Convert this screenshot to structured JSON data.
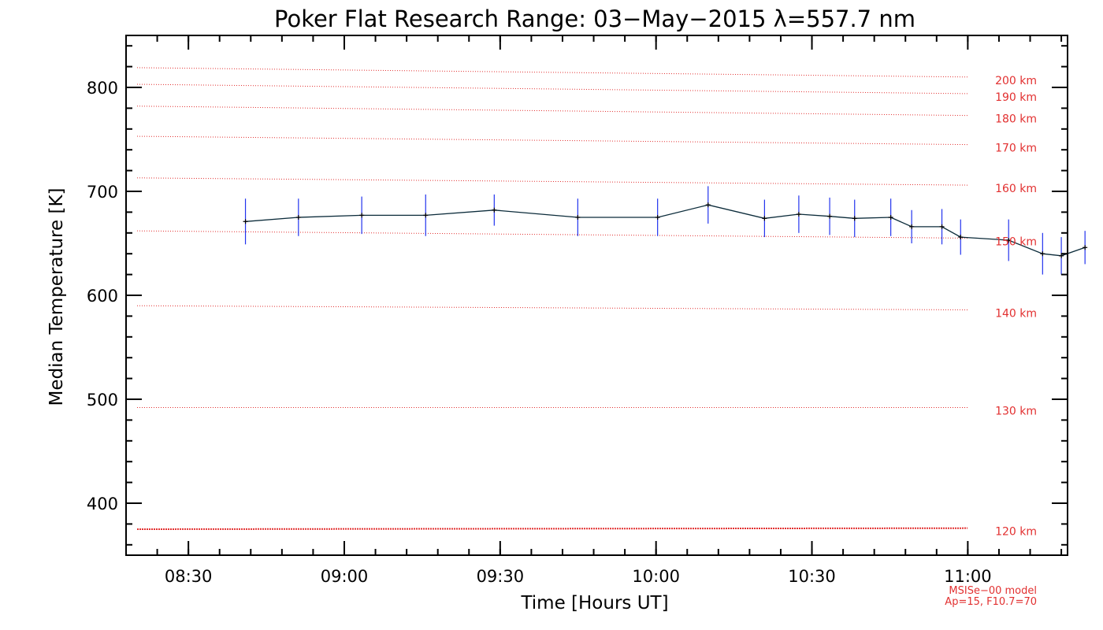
{
  "chart_data": {
    "type": "line",
    "title": "Poker Flat Research Range: 03−May−2015 λ=557.7 nm",
    "xlabel": "Time [Hours UT]",
    "ylabel": "Median Temperature [K]",
    "xlim": [
      8.3,
      11.32
    ],
    "ylim": [
      350,
      850
    ],
    "x_ticks": [
      {
        "value": 8.5,
        "label": "08:30"
      },
      {
        "value": 9.0,
        "label": "09:00"
      },
      {
        "value": 9.5,
        "label": "09:30"
      },
      {
        "value": 10.0,
        "label": "10:00"
      },
      {
        "value": 10.5,
        "label": "10:30"
      },
      {
        "value": 11.0,
        "label": "11:00"
      }
    ],
    "x_minor_step": 0.1,
    "y_ticks": [
      {
        "value": 400,
        "label": "400"
      },
      {
        "value": 500,
        "label": "500"
      },
      {
        "value": 600,
        "label": "600"
      },
      {
        "value": 700,
        "label": "700"
      },
      {
        "value": 800,
        "label": "800"
      }
    ],
    "y_minor_step": 20,
    "series": [
      {
        "color": "#0b2b3a",
        "error_color": "#2233ee",
        "points": [
          {
            "x": 8.683,
            "y": 671,
            "err": 22
          },
          {
            "x": 8.853,
            "y": 675,
            "err": 18
          },
          {
            "x": 9.056,
            "y": 677,
            "err": 18
          },
          {
            "x": 9.261,
            "y": 677,
            "err": 20
          },
          {
            "x": 9.481,
            "y": 682,
            "err": 15
          },
          {
            "x": 9.749,
            "y": 675,
            "err": 18
          },
          {
            "x": 10.005,
            "y": 675,
            "err": 18
          },
          {
            "x": 10.167,
            "y": 687,
            "err": 18
          },
          {
            "x": 10.348,
            "y": 674,
            "err": 18
          },
          {
            "x": 10.458,
            "y": 678,
            "err": 18
          },
          {
            "x": 10.557,
            "y": 676,
            "err": 18
          },
          {
            "x": 10.637,
            "y": 674,
            "err": 18
          },
          {
            "x": 10.753,
            "y": 675,
            "err": 18
          },
          {
            "x": 10.82,
            "y": 666,
            "err": 16
          },
          {
            "x": 10.917,
            "y": 666,
            "err": 17
          },
          {
            "x": 10.977,
            "y": 656,
            "err": 17
          },
          {
            "x": 11.131,
            "y": 653,
            "err": 20
          },
          {
            "x": 11.24,
            "y": 640,
            "err": 20
          },
          {
            "x": 11.3,
            "y": 638,
            "err": 18
          },
          {
            "x": 11.376,
            "y": 646,
            "err": 16
          }
        ]
      }
    ],
    "model_lines": [
      {
        "label": "120 km",
        "t_start": 375,
        "t_end": 376,
        "thick": true
      },
      {
        "label": "130 km",
        "t_start": 492,
        "t_end": 492
      },
      {
        "label": "140 km",
        "t_start": 590,
        "t_end": 586
      },
      {
        "label": "150 km",
        "t_start": 662,
        "t_end": 655
      },
      {
        "label": "160 km",
        "t_start": 713,
        "t_end": 706
      },
      {
        "label": "170 km",
        "t_start": 753,
        "t_end": 745
      },
      {
        "label": "180 km",
        "t_start": 782,
        "t_end": 773
      },
      {
        "label": "190 km",
        "t_start": 803,
        "t_end": 794
      },
      {
        "label": "200 km",
        "t_start": 819,
        "t_end": 810
      }
    ],
    "model_line_color": "#e23030",
    "model_note": [
      "MSISe−00 model",
      "Ap=15, F10.7=70"
    ]
  }
}
